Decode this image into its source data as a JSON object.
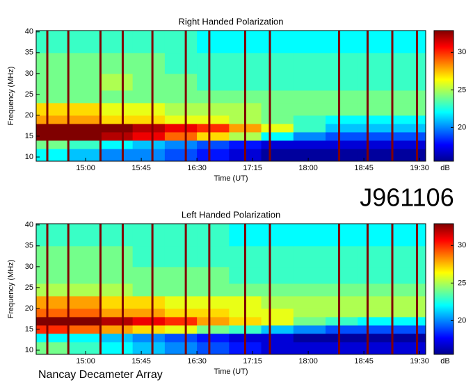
{
  "figure_label": "J961106",
  "footer": "Nancay Decameter Array",
  "chart_data": [
    {
      "type": "heatmap",
      "title": "Right Handed Polarization",
      "xlabel": "Time (UT)",
      "ylabel": "Frequency (MHz)",
      "xlim": [
        860,
        1175
      ],
      "xticks": [
        {
          "value": 900,
          "label": "15:00"
        },
        {
          "value": 945,
          "label": "15:45"
        },
        {
          "value": 990,
          "label": "16:30"
        },
        {
          "value": 1035,
          "label": "17:15"
        },
        {
          "value": 1080,
          "label": "18:00"
        },
        {
          "value": 1125,
          "label": "18:45"
        },
        {
          "value": 1170,
          "label": "19:30"
        }
      ],
      "ylim": [
        9,
        40.3
      ],
      "yticks": [
        10,
        15,
        20,
        25,
        30,
        35,
        40
      ],
      "xbins": [
        860,
        886,
        912,
        938,
        964,
        990,
        1016,
        1042,
        1068,
        1094,
        1120,
        1146,
        1175
      ],
      "ybins": [
        9,
        12,
        14,
        16,
        18,
        20,
        23,
        26,
        30,
        35,
        40.3
      ],
      "z": [
        [
          22,
          21,
          20,
          20,
          19,
          18,
          17,
          16,
          16,
          16,
          16,
          16
        ],
        [
          24,
          23,
          22,
          21,
          20,
          19,
          18,
          17,
          17,
          17,
          17,
          17
        ],
        [
          33,
          33,
          32,
          31,
          29,
          27,
          25,
          22,
          20,
          19,
          19,
          19
        ],
        [
          33,
          33,
          33,
          32,
          31,
          30,
          28,
          26,
          23,
          21,
          21,
          21
        ],
        [
          28,
          28,
          27,
          27,
          26,
          26,
          25,
          24,
          23,
          22,
          22,
          22
        ],
        [
          27,
          27,
          26,
          26,
          25,
          25,
          25,
          24,
          24,
          24,
          24,
          24
        ],
        [
          24,
          24,
          24,
          24,
          24,
          24,
          24,
          24,
          24,
          24,
          24,
          24
        ],
        [
          24,
          24,
          25,
          24,
          24,
          23,
          23,
          23,
          23,
          23,
          23,
          23
        ],
        [
          24,
          24,
          24,
          24,
          23,
          23,
          23,
          23,
          23,
          23,
          23,
          23
        ],
        [
          23,
          23,
          23,
          23,
          23,
          22,
          22,
          22,
          22,
          22,
          22,
          22
        ]
      ],
      "interference_times": [
        869,
        886,
        912,
        930,
        954,
        981,
        1000,
        1029,
        1049,
        1105,
        1128,
        1148,
        1168
      ],
      "interference_color": "#800000",
      "colormap": "jet",
      "clim": [
        15.5,
        32.9
      ],
      "cticks": [
        20,
        25,
        30
      ],
      "clabel": "dB"
    },
    {
      "type": "heatmap",
      "title": "Left Handed Polarization",
      "xlabel": "Time (UT)",
      "ylabel": "Frequency (MHz)",
      "xlim": [
        860,
        1175
      ],
      "xticks": [
        {
          "value": 900,
          "label": "15:00"
        },
        {
          "value": 945,
          "label": "15:45"
        },
        {
          "value": 990,
          "label": "16:30"
        },
        {
          "value": 1035,
          "label": "17:15"
        },
        {
          "value": 1080,
          "label": "18:00"
        },
        {
          "value": 1125,
          "label": "18:45"
        },
        {
          "value": 1170,
          "label": "19:30"
        }
      ],
      "ylim": [
        9,
        40.3
      ],
      "yticks": [
        10,
        15,
        20,
        25,
        30,
        35,
        40
      ],
      "xbins": [
        860,
        886,
        912,
        938,
        964,
        990,
        1016,
        1042,
        1068,
        1094,
        1120,
        1146,
        1175
      ],
      "ybins": [
        9,
        12,
        14,
        16,
        18,
        20,
        23,
        26,
        30,
        35,
        40.3
      ],
      "z": [
        [
          24,
          23,
          22,
          21,
          20,
          19,
          18,
          17,
          17,
          17,
          17,
          17
        ],
        [
          22,
          22,
          21,
          20,
          19,
          18,
          17,
          17,
          16,
          16,
          16,
          16
        ],
        [
          30,
          29,
          28,
          27,
          26,
          24,
          23,
          21,
          20,
          19,
          19,
          19
        ],
        [
          33,
          33,
          32,
          31,
          30,
          28,
          27,
          26,
          24,
          23,
          22,
          22
        ],
        [
          29,
          29,
          28,
          28,
          27,
          27,
          26,
          26,
          25,
          25,
          25,
          25
        ],
        [
          28,
          28,
          27,
          27,
          26,
          26,
          26,
          25,
          25,
          25,
          25,
          25
        ],
        [
          25,
          25,
          25,
          24,
          24,
          24,
          24,
          24,
          24,
          24,
          24,
          24
        ],
        [
          24,
          24,
          24,
          24,
          24,
          24,
          23,
          23,
          23,
          23,
          23,
          23
        ],
        [
          24,
          24,
          24,
          23,
          23,
          23,
          23,
          23,
          23,
          23,
          23,
          23
        ],
        [
          23,
          23,
          23,
          23,
          23,
          23,
          22,
          22,
          22,
          22,
          22,
          22
        ]
      ],
      "interference_times": [
        869,
        886,
        912,
        930,
        954,
        981,
        1000,
        1029,
        1049,
        1105,
        1128,
        1148,
        1168
      ],
      "interference_color": "#800000",
      "colormap": "jet",
      "clim": [
        15.5,
        32.9
      ],
      "cticks": [
        20,
        25,
        30
      ],
      "clabel": "dB"
    }
  ]
}
